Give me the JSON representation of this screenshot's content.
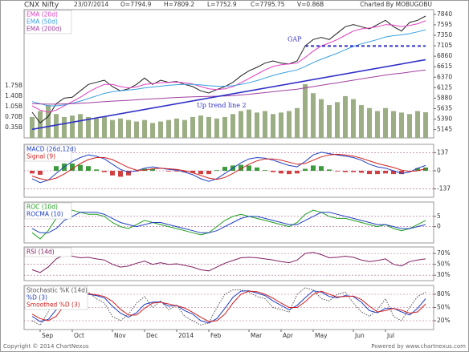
{
  "header": {
    "symbol": "CNX Nifty",
    "date": "23/07/2014",
    "open": "O=7794.9",
    "high": "H=7809.2",
    "low": "L=7752.9",
    "close": "C=7795.75",
    "volume": "V=0.86B",
    "credit": "Charted By MOBUGOBU"
  },
  "footer": {
    "left": "Copyright © 2014 ChartNexus",
    "right": "Powered by www.chartnexus.com"
  },
  "chart_data": [
    {
      "type": "line",
      "ylim": [
        4950,
        7950
      ],
      "yticks": [
        5145,
        5390,
        5635,
        5880,
        6125,
        6370,
        6615,
        6860,
        7105,
        7350,
        7595,
        7840
      ],
      "y2lim": [
        0,
        4.3
      ],
      "y2ticks": [
        {
          "value": 0.35,
          "label": "0.35B"
        },
        {
          "value": 0.7,
          "label": "0.70B"
        },
        {
          "value": 1.05,
          "label": "1.05B"
        },
        {
          "value": 1.4,
          "label": "1.40B"
        },
        {
          "value": 1.75,
          "label": "1.75B"
        }
      ],
      "grid": false,
      "series": [
        {
          "axis": "y2",
          "type": "bar",
          "color": "#9cae84",
          "values": [
            0.7,
            0.9,
            1.1,
            0.8,
            0.7,
            0.75,
            0.8,
            0.7,
            0.65,
            0.7,
            0.6,
            0.65,
            0.6,
            0.55,
            0.6,
            0.5,
            0.55,
            0.6,
            0.65,
            0.6,
            0.7,
            0.75,
            0.7,
            0.65,
            0.7,
            0.8,
            0.9,
            0.95,
            0.85,
            0.9,
            0.8,
            0.85,
            0.9,
            1.0,
            1.8,
            1.5,
            1.3,
            1.1,
            1.2,
            1.4,
            1.3,
            1.1,
            1.0,
            0.9,
            1.0,
            0.9,
            0.85,
            0.8,
            0.9,
            0.86
          ]
        },
        {
          "type": "line",
          "color": "#222222",
          "values": [
            5550,
            5300,
            5450,
            5750,
            5880,
            5900,
            6050,
            6200,
            6250,
            6300,
            6150,
            6050,
            6100,
            6200,
            6350,
            6200,
            6300,
            6250,
            6270,
            6200,
            6150,
            6050,
            6000,
            6080,
            6150,
            6250,
            6400,
            6520,
            6600,
            6700,
            6750,
            6700,
            6680,
            6750,
            7100,
            7250,
            7300,
            7250,
            7400,
            7550,
            7600,
            7550,
            7500,
            7600,
            7700,
            7550,
            7450,
            7650,
            7700,
            7800
          ]
        },
        {
          "name": "EMA (20d)",
          "type": "line",
          "color": "#e040c0",
          "values": [
            5700,
            5600,
            5550,
            5600,
            5700,
            5800,
            5900,
            6020,
            6120,
            6200,
            6200,
            6150,
            6120,
            6140,
            6200,
            6220,
            6240,
            6250,
            6255,
            6240,
            6210,
            6150,
            6100,
            6080,
            6100,
            6150,
            6240,
            6340,
            6440,
            6540,
            6620,
            6660,
            6680,
            6700,
            6830,
            6980,
            7100,
            7170,
            7250,
            7350,
            7450,
            7500,
            7520,
            7550,
            7600,
            7590,
            7550,
            7580,
            7620,
            7690
          ]
        },
        {
          "name": "EMA (50d)",
          "type": "line",
          "color": "#3aa0e0",
          "values": [
            5800,
            5750,
            5700,
            5700,
            5720,
            5760,
            5810,
            5870,
            5930,
            5990,
            6030,
            6050,
            6070,
            6090,
            6120,
            6140,
            6160,
            6180,
            6195,
            6200,
            6200,
            6190,
            6170,
            6160,
            6160,
            6170,
            6200,
            6240,
            6290,
            6350,
            6410,
            6460,
            6500,
            6540,
            6620,
            6710,
            6790,
            6860,
            6930,
            7010,
            7090,
            7150,
            7200,
            7250,
            7310,
            7340,
            7360,
            7390,
            7430,
            7480
          ]
        },
        {
          "name": "EMA (200d)",
          "type": "line",
          "color": "#a040a0",
          "values": [
            5750,
            5745,
            5740,
            5740,
            5745,
            5750,
            5760,
            5770,
            5785,
            5800,
            5810,
            5820,
            5830,
            5840,
            5855,
            5865,
            5875,
            5885,
            5895,
            5905,
            5910,
            5915,
            5920,
            5925,
            5930,
            5940,
            5955,
            5970,
            5990,
            6010,
            6030,
            6050,
            6070,
            6090,
            6120,
            6150,
            6180,
            6210,
            6240,
            6270,
            6300,
            6330,
            6360,
            6390,
            6420,
            6445,
            6465,
            6490,
            6515,
            6540
          ]
        }
      ],
      "trend_lines": [
        {
          "label": "Up trend line 2",
          "color": "#3030c8",
          "dashed": false,
          "x": [
            0,
            49
          ],
          "values": [
            5150,
            6780
          ]
        },
        {
          "label": "GAP",
          "color": "#3030c8",
          "dashed": true,
          "x": [
            34,
            49
          ],
          "values": [
            7100,
            7100
          ]
        }
      ]
    },
    {
      "type": "line",
      "ylim": [
        -200,
        200
      ],
      "yticks": [
        137,
        0,
        -137
      ],
      "grid": true,
      "series": [
        {
          "type": "bar",
          "color": "#3c9a3c",
          "negative_color": "#d04040",
          "values": [
            -20,
            -30,
            0,
            35,
            55,
            55,
            45,
            35,
            10,
            -10,
            -35,
            -45,
            -35,
            -5,
            15,
            15,
            0,
            -5,
            -5,
            -10,
            -15,
            -25,
            -25,
            5,
            30,
            40,
            45,
            40,
            25,
            5,
            -10,
            -20,
            -25,
            -20,
            15,
            40,
            35,
            10,
            -5,
            -10,
            -10,
            -15,
            -25,
            -25,
            -20,
            -25,
            -25,
            -5,
            20,
            25
          ]
        },
        {
          "name": "MACD (26d,12d)",
          "type": "line",
          "color": "#2040c0",
          "values": [
            -60,
            -90,
            -70,
            -20,
            30,
            70,
            100,
            120,
            110,
            90,
            50,
            10,
            -10,
            0,
            20,
            30,
            20,
            10,
            5,
            -10,
            -30,
            -60,
            -80,
            -60,
            -20,
            20,
            60,
            90,
            100,
            95,
            80,
            60,
            40,
            30,
            70,
            120,
            140,
            130,
            120,
            110,
            100,
            80,
            50,
            30,
            20,
            0,
            -20,
            -10,
            20,
            40
          ]
        },
        {
          "name": "Signal (9)",
          "type": "line",
          "color": "#d02020",
          "values": [
            -40,
            -60,
            -70,
            -55,
            -25,
            15,
            55,
            85,
            100,
            100,
            85,
            55,
            25,
            5,
            5,
            15,
            20,
            15,
            10,
            0,
            -15,
            -35,
            -55,
            -65,
            -50,
            -20,
            15,
            50,
            75,
            90,
            90,
            80,
            65,
            50,
            55,
            80,
            105,
            120,
            125,
            120,
            110,
            95,
            75,
            55,
            40,
            25,
            5,
            -5,
            0,
            15
          ]
        }
      ]
    },
    {
      "type": "line",
      "ylim": [
        -8,
        12
      ],
      "yticks": [
        5,
        0
      ],
      "grid": true,
      "series": [
        {
          "name": "ROC (10d)",
          "type": "line",
          "color": "#20a020",
          "values": [
            -3,
            -6,
            -2,
            4,
            9,
            8,
            7,
            6,
            6,
            5,
            2,
            0,
            -1,
            1,
            3,
            2,
            1,
            0,
            -1,
            -2,
            -3,
            -4,
            -3,
            0,
            3,
            5,
            6,
            5,
            4,
            3,
            2,
            1,
            0,
            2,
            6,
            8,
            7,
            5,
            4,
            4,
            3,
            2,
            1,
            0,
            1,
            -1,
            -2,
            -1,
            1,
            3
          ]
        },
        {
          "name": "ROCMA (10)",
          "type": "line",
          "color": "#2040c0",
          "values": [
            -1,
            -3,
            -3,
            -1,
            3,
            5,
            7,
            7,
            7,
            6,
            4,
            2,
            1,
            0,
            1,
            2,
            2,
            1,
            0,
            -1,
            -2,
            -3,
            -3,
            -2,
            0,
            2,
            4,
            5,
            5,
            4,
            3,
            2,
            1,
            1,
            3,
            5,
            7,
            7,
            6,
            5,
            4,
            3,
            2,
            1,
            1,
            0,
            -1,
            -1,
            0,
            1
          ]
        }
      ]
    },
    {
      "type": "line",
      "ylim": [
        20,
        82
      ],
      "yticks": [
        {
          "value": 70,
          "label": "70%"
        },
        {
          "value": 50,
          "label": "50%"
        },
        {
          "value": 30,
          "label": "30%"
        }
      ],
      "grid": true,
      "series": [
        {
          "name": "RSI (14d)",
          "type": "line",
          "color": "#802060",
          "values": [
            40,
            35,
            45,
            60,
            68,
            65,
            62,
            63,
            60,
            58,
            50,
            45,
            47,
            52,
            56,
            50,
            53,
            50,
            51,
            48,
            45,
            40,
            38,
            45,
            52,
            57,
            62,
            63,
            62,
            60,
            58,
            55,
            53,
            58,
            70,
            72,
            68,
            62,
            63,
            65,
            63,
            58,
            55,
            57,
            60,
            50,
            47,
            55,
            58,
            60
          ]
        }
      ]
    },
    {
      "type": "line",
      "ylim": [
        0,
        100
      ],
      "yticks": [
        {
          "value": 80,
          "label": "80%"
        },
        {
          "value": 50,
          "label": "50%"
        },
        {
          "value": 20,
          "label": "20%"
        }
      ],
      "grid": true,
      "xlim": [
        -1,
        50
      ],
      "x": [
        0,
        1,
        2,
        3,
        4,
        5,
        6,
        7,
        8,
        9,
        10,
        11,
        12,
        13,
        14,
        15,
        16,
        17,
        18,
        19,
        20,
        21,
        22,
        23,
        24,
        25,
        26,
        27,
        28,
        29,
        30,
        31,
        32,
        33,
        34,
        35,
        36,
        37,
        38,
        39,
        40,
        41,
        42,
        43,
        44,
        45,
        46,
        47,
        48,
        49
      ],
      "xticks": [
        {
          "value": 1,
          "label": "Sep"
        },
        {
          "value": 5,
          "label": "Oct"
        },
        {
          "value": 10,
          "label": "Nov"
        },
        {
          "value": 14,
          "label": "Dec"
        },
        {
          "value": 18,
          "label": "2014"
        },
        {
          "value": 22,
          "label": "Feb"
        },
        {
          "value": 27,
          "label": "Mar"
        },
        {
          "value": 31,
          "label": "Apr"
        },
        {
          "value": 35,
          "label": "May"
        },
        {
          "value": 40,
          "label": "Jun"
        },
        {
          "value": 44,
          "label": "Jul"
        }
      ],
      "series": [
        {
          "name": "Stochastic %K (14d)",
          "type": "line",
          "color": "#555555",
          "dashed": true,
          "values": [
            20,
            10,
            40,
            85,
            90,
            80,
            75,
            85,
            70,
            60,
            30,
            20,
            35,
            60,
            75,
            50,
            65,
            45,
            55,
            30,
            20,
            10,
            15,
            50,
            80,
            90,
            90,
            85,
            75,
            70,
            50,
            45,
            40,
            80,
            95,
            90,
            70,
            65,
            80,
            85,
            60,
            40,
            30,
            45,
            70,
            30,
            20,
            50,
            75,
            85
          ]
        },
        {
          "name": "%D (3)",
          "type": "line",
          "color": "#2040c0",
          "values": [
            30,
            18,
            23,
            45,
            72,
            85,
            82,
            80,
            77,
            72,
            53,
            37,
            28,
            38,
            57,
            62,
            63,
            53,
            55,
            43,
            35,
            20,
            15,
            25,
            48,
            73,
            87,
            88,
            83,
            77,
            65,
            55,
            45,
            55,
            72,
            88,
            85,
            75,
            72,
            77,
            75,
            62,
            43,
            38,
            48,
            48,
            40,
            33,
            48,
            70
          ]
        },
        {
          "name": "Smoothed %D (3)",
          "type": "line",
          "color": "#d02020",
          "values": [
            35,
            25,
            20,
            30,
            55,
            78,
            84,
            81,
            79,
            75,
            64,
            46,
            33,
            33,
            48,
            60,
            62,
            58,
            54,
            49,
            39,
            28,
            18,
            20,
            35,
            60,
            80,
            87,
            86,
            80,
            71,
            60,
            50,
            50,
            63,
            80,
            87,
            80,
            74,
            75,
            76,
            68,
            53,
            40,
            43,
            48,
            44,
            37,
            40,
            58
          ]
        }
      ]
    }
  ]
}
